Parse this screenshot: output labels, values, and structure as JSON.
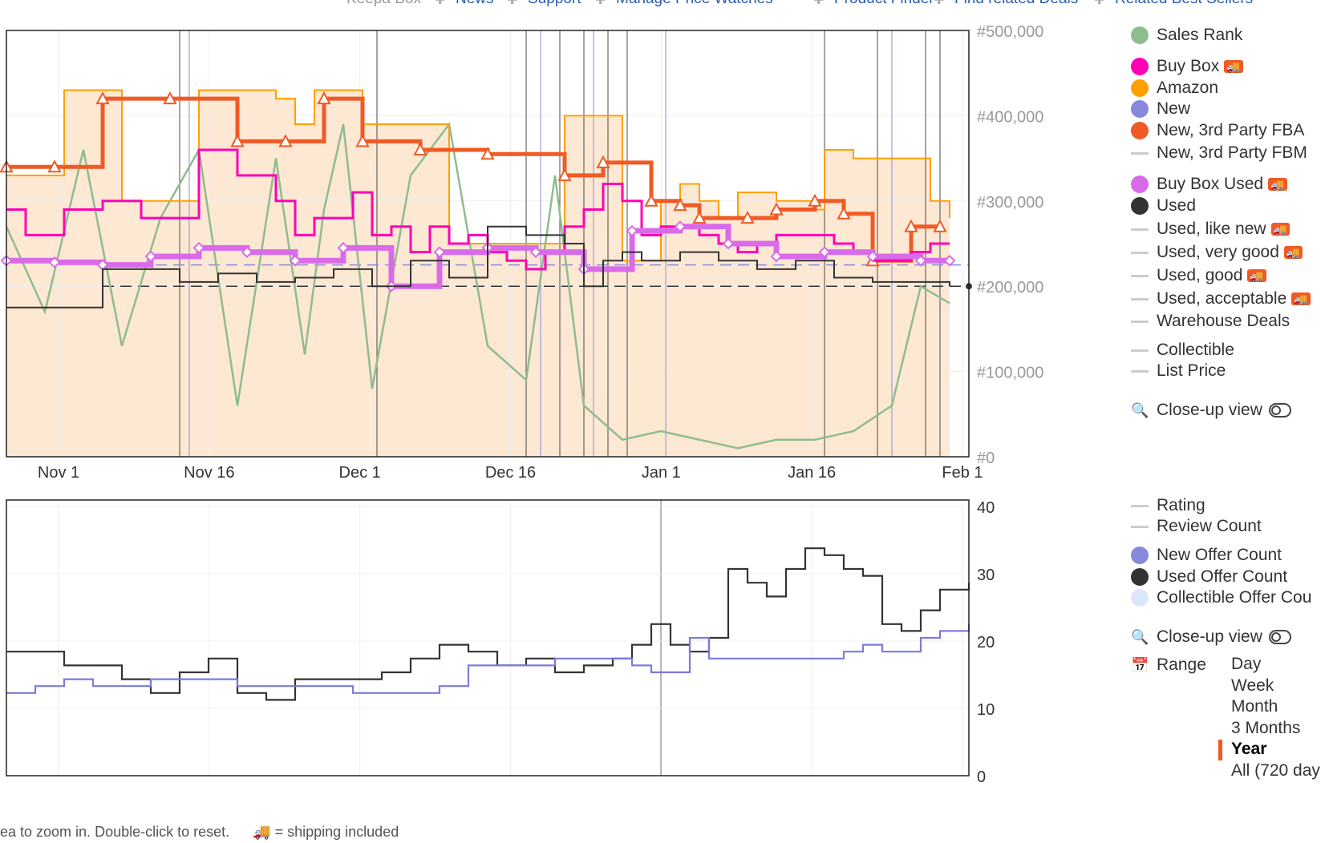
{
  "nav": {
    "items": [
      "Keepa Box",
      "News",
      "Support",
      "Manage Price Watches",
      "Product Finder",
      "Find related Deals",
      "Related Best Sellers"
    ],
    "link_color": "#2a5db0"
  },
  "chart_data": [
    {
      "type": "line",
      "name": "price-chart",
      "x_ticks": [
        "Nov 1",
        "Nov 16",
        "Dec 1",
        "Dec 16",
        "Jan 1",
        "Jan 16",
        "Feb 1"
      ],
      "right_axis_ticks": [
        "#500,000",
        "#400,000",
        "#300,000",
        "#200,000",
        "#100,000",
        "#0"
      ],
      "ylim_sales_rank": [
        0,
        500000
      ],
      "grid": true,
      "legend_placement": "right",
      "series": [
        {
          "name": "Sales Rank",
          "color": "#8fbc8f",
          "x": [
            0,
            4,
            8,
            12,
            16,
            20,
            24,
            28,
            31,
            33,
            35,
            38,
            42,
            46,
            50,
            54,
            57,
            60,
            64,
            68,
            72,
            76,
            80,
            84,
            88,
            92,
            95,
            98
          ],
          "values": [
            270000,
            170000,
            360000,
            130000,
            280000,
            360000,
            60000,
            350000,
            120000,
            290000,
            390000,
            80000,
            330000,
            390000,
            130000,
            90000,
            330000,
            60000,
            20000,
            30000,
            20000,
            10000,
            20000,
            20000,
            30000,
            60000,
            200000,
            180000
          ]
        },
        {
          "name": "Amazon",
          "color": "#ff9f00",
          "x": [
            0,
            5,
            6,
            11,
            12,
            19,
            20,
            25,
            28,
            30,
            32,
            36,
            37,
            45,
            46,
            57,
            58,
            62,
            64,
            68,
            70,
            72,
            74,
            76,
            80,
            84,
            85,
            86,
            88,
            94,
            96,
            98
          ],
          "values": [
            330000,
            330000,
            430000,
            430000,
            300000,
            300000,
            430000,
            430000,
            420000,
            390000,
            430000,
            430000,
            390000,
            390000,
            250000,
            250000,
            400000,
            400000,
            230000,
            300000,
            320000,
            300000,
            280000,
            310000,
            300000,
            290000,
            360000,
            360000,
            350000,
            350000,
            300000,
            280000
          ]
        },
        {
          "name": "New, 3rd Party FBA",
          "color": "#f05a24",
          "x": [
            0,
            5,
            10,
            17,
            24,
            29,
            33,
            37,
            43,
            50,
            58,
            62,
            67,
            70,
            72,
            77,
            80,
            84,
            87,
            90,
            94,
            97
          ],
          "values": [
            340000,
            340000,
            420000,
            420000,
            370000,
            370000,
            420000,
            370000,
            360000,
            355000,
            330000,
            345000,
            300000,
            295000,
            280000,
            280000,
            290000,
            300000,
            285000,
            230000,
            270000,
            270000
          ]
        },
        {
          "name": "Buy Box",
          "color": "#ff00b4",
          "x": [
            0,
            2,
            6,
            10,
            14,
            20,
            24,
            28,
            30,
            32,
            36,
            38,
            40,
            42,
            44,
            46,
            48,
            50,
            52,
            54,
            56,
            58,
            60,
            62,
            64,
            66,
            68,
            70,
            72,
            74,
            76,
            78,
            80,
            82,
            84,
            86,
            88,
            90,
            92,
            94,
            96,
            98
          ],
          "values": [
            290000,
            260000,
            290000,
            300000,
            280000,
            360000,
            330000,
            300000,
            260000,
            280000,
            310000,
            260000,
            270000,
            240000,
            270000,
            250000,
            260000,
            240000,
            230000,
            220000,
            240000,
            270000,
            290000,
            320000,
            300000,
            260000,
            270000,
            270000,
            260000,
            250000,
            240000,
            250000,
            260000,
            260000,
            260000,
            250000,
            240000,
            230000,
            230000,
            240000,
            250000,
            250000
          ]
        },
        {
          "name": "Buy Box Used",
          "color": "#d96be8",
          "x": [
            0,
            5,
            10,
            15,
            20,
            25,
            30,
            35,
            40,
            45,
            50,
            55,
            60,
            65,
            70,
            75,
            80,
            85,
            90,
            95,
            98
          ],
          "values": [
            230000,
            228000,
            225000,
            235000,
            245000,
            240000,
            230000,
            245000,
            200000,
            240000,
            245000,
            240000,
            220000,
            265000,
            270000,
            250000,
            235000,
            240000,
            235000,
            230000,
            230000
          ]
        },
        {
          "name": "Used",
          "color": "#333333",
          "x": [
            0,
            8,
            10,
            14,
            18,
            22,
            26,
            30,
            34,
            38,
            42,
            46,
            50,
            54,
            58,
            60,
            62,
            64,
            66,
            70,
            74,
            78,
            82,
            86,
            90,
            94,
            98
          ],
          "values": [
            175000,
            175000,
            220000,
            220000,
            205000,
            215000,
            205000,
            210000,
            220000,
            200000,
            230000,
            210000,
            270000,
            260000,
            250000,
            200000,
            230000,
            240000,
            230000,
            240000,
            230000,
            220000,
            230000,
            210000,
            205000,
            205000,
            200000
          ]
        }
      ],
      "dashed_reference_lines": [
        {
          "series": "New",
          "value": 225000
        },
        {
          "series": "Used",
          "value": 200000
        }
      ]
    },
    {
      "type": "line",
      "name": "offer-count-chart",
      "right_axis_ticks": [
        "40",
        "30",
        "20",
        "10",
        "0"
      ],
      "ylim": [
        0,
        40
      ],
      "grid": true,
      "series": [
        {
          "name": "Used Offer Count",
          "color": "#333333",
          "x": [
            0,
            3,
            6,
            9,
            12,
            15,
            18,
            21,
            24,
            27,
            30,
            33,
            36,
            39,
            42,
            45,
            48,
            51,
            54,
            57,
            60,
            63,
            65,
            67,
            69,
            71,
            73,
            75,
            77,
            79,
            81,
            83,
            85,
            87,
            89,
            91,
            93,
            95,
            97,
            100
          ],
          "values": [
            18,
            18,
            16,
            16,
            14,
            12,
            15,
            17,
            12,
            11,
            14,
            14,
            14,
            15,
            17,
            19,
            18,
            16,
            17,
            15,
            16,
            17,
            19,
            22,
            19,
            18,
            20,
            30,
            28,
            26,
            30,
            33,
            32,
            30,
            29,
            22,
            21,
            24,
            27,
            28
          ]
        },
        {
          "name": "New Offer Count",
          "color": "#7b7bdc",
          "x": [
            0,
            3,
            6,
            9,
            12,
            15,
            18,
            21,
            24,
            27,
            30,
            33,
            36,
            39,
            42,
            45,
            48,
            51,
            54,
            57,
            60,
            63,
            65,
            67,
            69,
            71,
            73,
            75,
            77,
            79,
            81,
            83,
            85,
            87,
            89,
            91,
            93,
            95,
            97,
            100
          ],
          "values": [
            12,
            13,
            14,
            13,
            13,
            14,
            14,
            14,
            13,
            13,
            13,
            13,
            12,
            12,
            12,
            13,
            16,
            16,
            16,
            17,
            17,
            17,
            16,
            15,
            15,
            20,
            17,
            17,
            17,
            17,
            17,
            17,
            17,
            18,
            19,
            18,
            18,
            20,
            21,
            22
          ]
        }
      ]
    }
  ],
  "legend": {
    "top": [
      {
        "label": "Sales Rank",
        "color": "#8fbc8f",
        "kind": "dot"
      },
      {
        "label": "Buy Box",
        "color": "#ff00b4",
        "kind": "dot",
        "truck": true
      },
      {
        "label": "Amazon",
        "color": "#ff9f00",
        "kind": "dot"
      },
      {
        "label": "New",
        "color": "#8888dd",
        "kind": "dot"
      },
      {
        "label": "New, 3rd Party FBA",
        "color": "#f05a24",
        "kind": "dot"
      },
      {
        "label": "New, 3rd Party FBM",
        "color": "#cccccc",
        "kind": "dash"
      },
      {
        "label": "Buy Box Used",
        "color": "#d96be8",
        "kind": "dot",
        "truck": true
      },
      {
        "label": "Used",
        "color": "#333333",
        "kind": "dot"
      },
      {
        "label": "Used, like new",
        "color": "#cccccc",
        "kind": "dash",
        "truck": true
      },
      {
        "label": "Used, very good",
        "color": "#cccccc",
        "kind": "dash",
        "truck": true
      },
      {
        "label": "Used, good",
        "color": "#cccccc",
        "kind": "dash",
        "truck": true
      },
      {
        "label": "Used, acceptable",
        "color": "#cccccc",
        "kind": "dash",
        "truck": true
      },
      {
        "label": "Warehouse Deals",
        "color": "#cccccc",
        "kind": "dash"
      },
      {
        "label": "Collectible",
        "color": "#cccccc",
        "kind": "dash"
      },
      {
        "label": "List Price",
        "color": "#cccccc",
        "kind": "dash"
      }
    ],
    "bottom": [
      {
        "label": "Rating",
        "color": "#cccccc",
        "kind": "dash"
      },
      {
        "label": "Review Count",
        "color": "#cccccc",
        "kind": "dash"
      },
      {
        "label": "New Offer Count",
        "color": "#8888dd",
        "kind": "dot"
      },
      {
        "label": "Used Offer Count",
        "color": "#333333",
        "kind": "dot"
      },
      {
        "label": "Collectible Offer Cou",
        "color": "#dce6fa",
        "kind": "dot"
      }
    ],
    "closeup_label": "Close-up view",
    "range_label": "Range",
    "range_options": [
      "Day",
      "Week",
      "Month",
      "3 Months",
      "Year",
      "All (720 day"
    ],
    "range_selected": "Year",
    "truck_glyph": "🚚"
  },
  "footer": {
    "hint": "ea to zoom in. Double-click to reset.",
    "shipping_note": "= shipping included"
  }
}
